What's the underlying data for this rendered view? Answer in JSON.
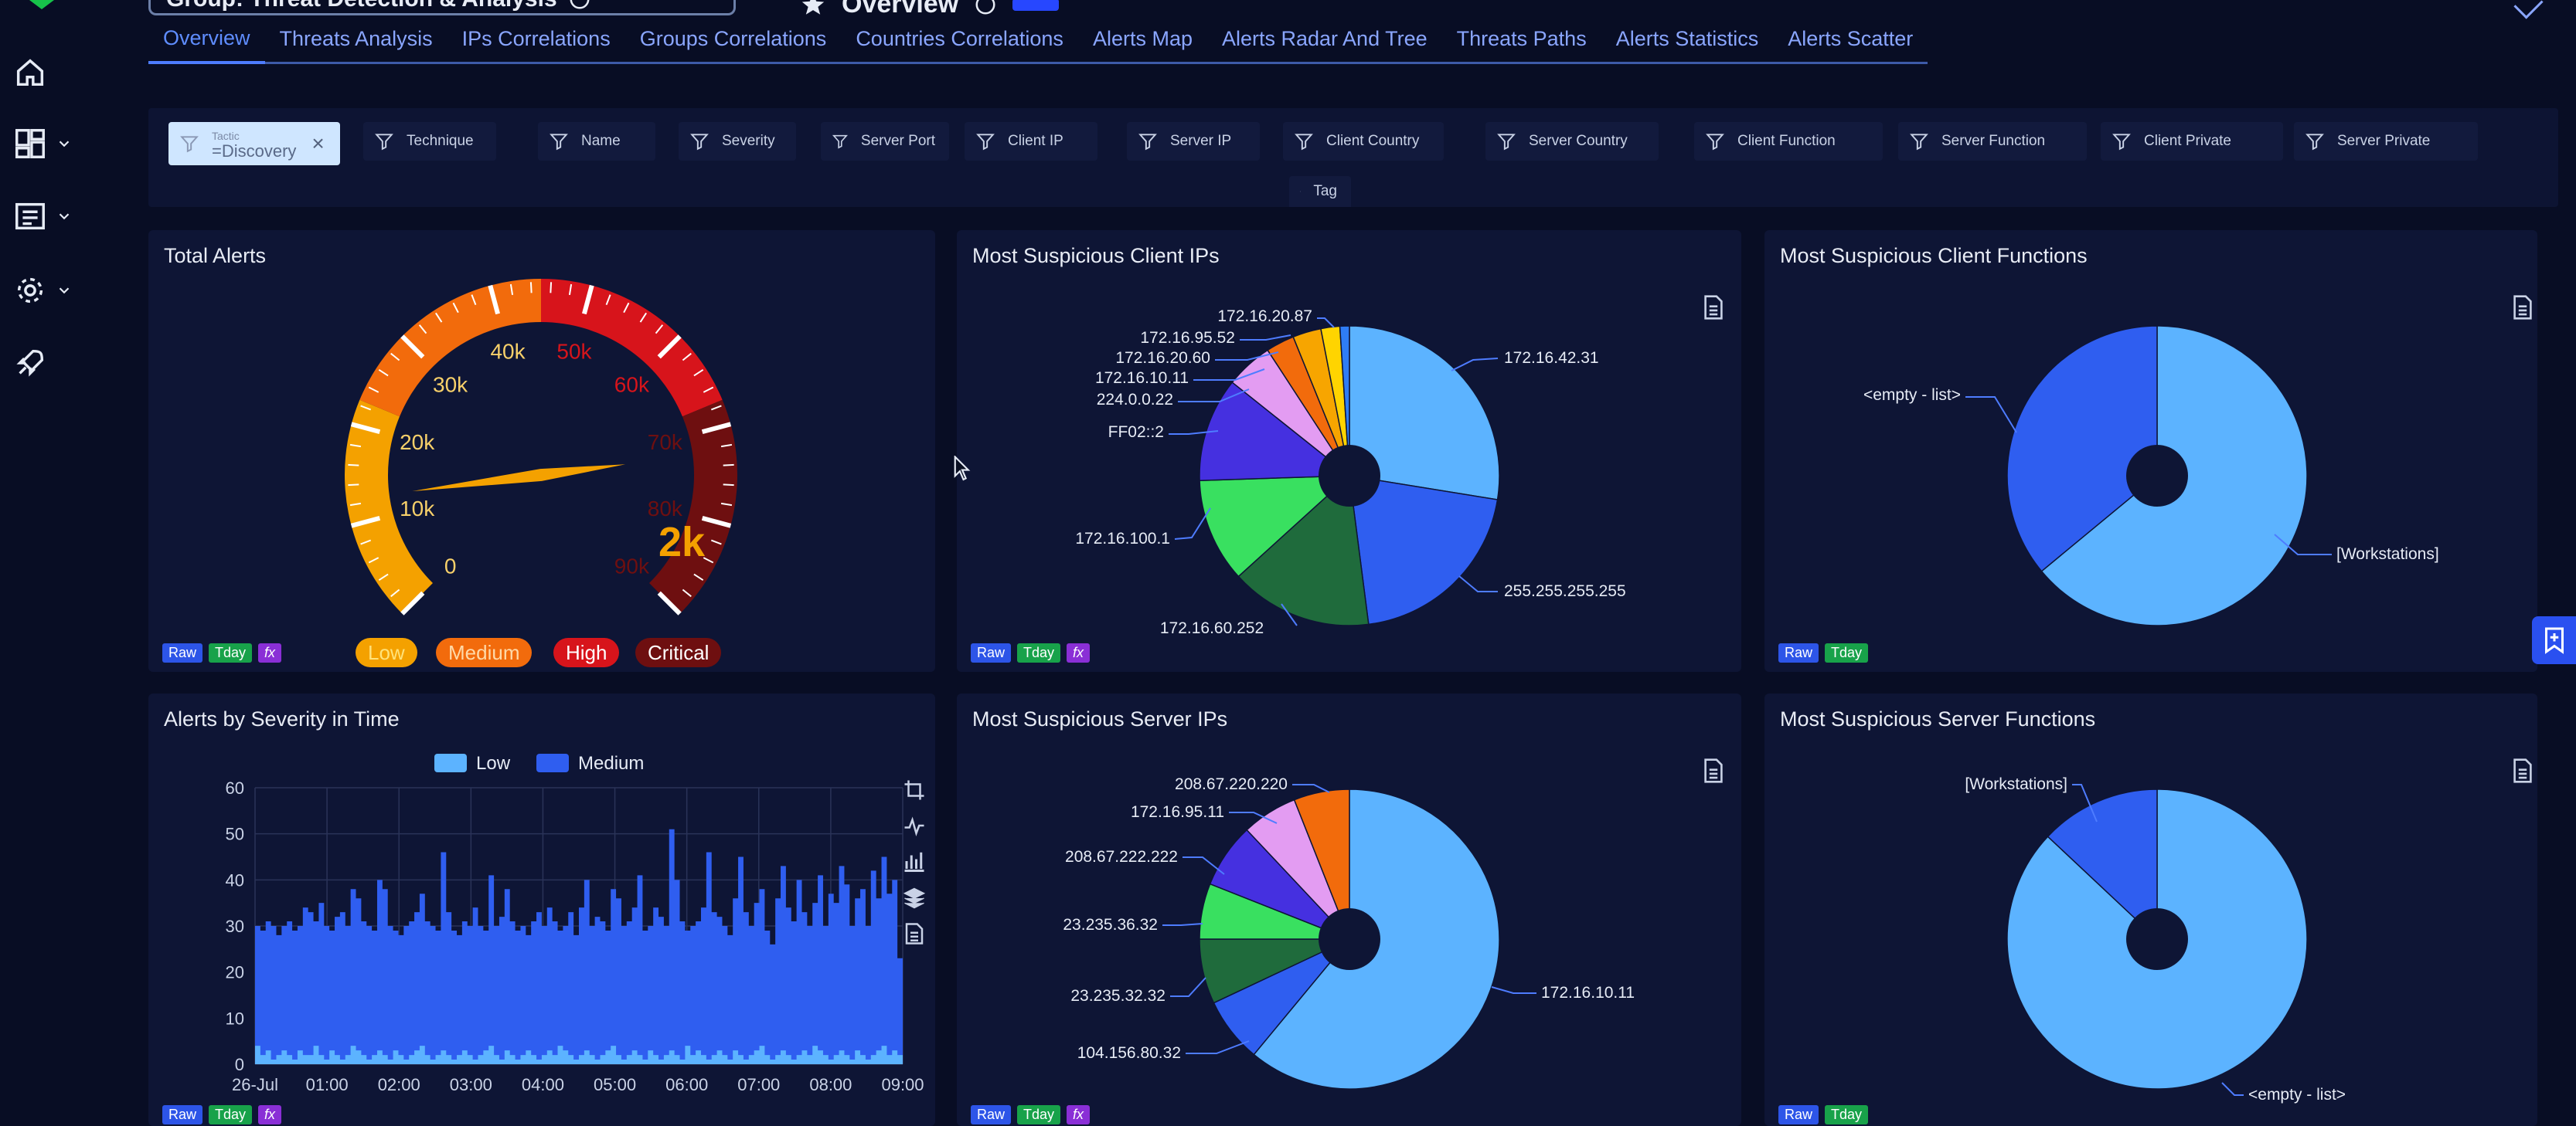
{
  "header": {
    "group_title": "Group: Threat Detection & Analysis",
    "dashboard_title": "Overview"
  },
  "tabs": [
    {
      "label": "Overview",
      "active": true
    },
    {
      "label": "Threats Analysis"
    },
    {
      "label": "IPs Correlations"
    },
    {
      "label": "Groups Correlations"
    },
    {
      "label": "Countries Correlations"
    },
    {
      "label": "Alerts Map"
    },
    {
      "label": "Alerts Radar And Tree"
    },
    {
      "label": "Threats Paths"
    },
    {
      "label": "Alerts Statistics"
    },
    {
      "label": "Alerts Scatter"
    }
  ],
  "filters": {
    "active": {
      "key": "Tactic",
      "value": "=Discovery"
    },
    "chips": [
      "Technique",
      "Name",
      "Severity",
      "Server Port",
      "Client IP",
      "Server IP",
      "Client Country",
      "Server Country",
      "Client Function",
      "Server Function",
      "Client Private",
      "Server Private",
      "Tag"
    ]
  },
  "sidebar": {
    "icons": [
      "home-icon",
      "dashboard-icon",
      "list-icon",
      "gear-icon",
      "rocket-icon"
    ]
  },
  "tags": {
    "raw": "Raw",
    "tday": "Tday",
    "fx": "fx"
  },
  "panels": {
    "total_alerts": {
      "title": "Total Alerts",
      "value_label": "2k",
      "value": 2000,
      "max": 90000,
      "ticks": [
        "0",
        "10k",
        "20k",
        "30k",
        "40k",
        "50k",
        "60k",
        "70k",
        "80k",
        "90k"
      ],
      "legend": [
        {
          "label": "Low",
          "color": "#f4a100"
        },
        {
          "label": "Medium",
          "color": "#f26b0c"
        },
        {
          "label": "High",
          "color": "#d7141b"
        },
        {
          "label": "Critical",
          "color": "#6e0f10"
        }
      ]
    },
    "client_ips": {
      "title": "Most Suspicious Client IPs",
      "chart_data": {
        "type": "pie",
        "labels": [
          "172.16.42.31",
          "255.255.255.255",
          "172.16.60.252",
          "172.16.100.1",
          "FF02::2",
          "224.0.0.22",
          "172.16.10.11",
          "172.16.20.60",
          "172.16.95.52",
          "172.16.20.87"
        ],
        "values": [
          27,
          20,
          15,
          11,
          11,
          5,
          3,
          3,
          2,
          1
        ],
        "colors": [
          "#5cb3ff",
          "#2f5ef0",
          "#1f6b3c",
          "#39e060",
          "#4530e0",
          "#e39cf2",
          "#f26b0c",
          "#f7a500",
          "#ffd400",
          "#2f7df5"
        ]
      }
    },
    "client_functions": {
      "title": "Most Suspicious Client Functions",
      "chart_data": {
        "type": "pie",
        "labels": [
          "[Workstations]",
          "<empty - list>"
        ],
        "values": [
          64,
          36
        ],
        "colors": [
          "#5cb3ff",
          "#2f5ef0"
        ]
      }
    },
    "severity_time": {
      "title": "Alerts by Severity in Time",
      "chart_data": {
        "type": "area",
        "series": [
          {
            "name": "Low",
            "color": "#5cb3ff"
          },
          {
            "name": "Medium",
            "color": "#2f5ef0"
          }
        ],
        "x_ticks": [
          "26-Jul",
          "01:00",
          "02:00",
          "03:00",
          "04:00",
          "05:00",
          "06:00",
          "07:00",
          "08:00",
          "09:00"
        ],
        "y_ticks": [
          "0",
          "10",
          "20",
          "30",
          "40",
          "50",
          "60"
        ],
        "ylim": [
          0,
          60
        ],
        "medium_values": [
          30,
          29,
          31,
          30,
          28,
          30,
          31,
          29,
          30,
          34,
          33,
          31,
          35,
          30,
          29,
          32,
          33,
          30,
          38,
          36,
          31,
          30,
          29,
          40,
          38,
          30,
          29,
          28,
          30,
          31,
          33,
          37,
          31,
          30,
          29,
          46,
          33,
          29,
          28,
          31,
          30,
          34,
          30,
          29,
          41,
          30,
          32,
          38,
          31,
          29,
          30,
          28,
          31,
          33,
          30,
          34,
          31,
          29,
          30,
          33,
          28,
          34,
          40,
          30,
          32,
          31,
          29,
          38,
          36,
          30,
          31,
          34,
          41,
          29,
          30,
          34,
          32,
          30,
          51,
          40,
          31,
          29,
          30,
          31,
          34,
          46,
          33,
          32,
          30,
          28,
          36,
          45,
          33,
          30,
          35,
          38,
          29,
          26,
          36,
          43,
          34,
          31,
          40,
          33,
          30,
          35,
          41,
          30,
          37,
          35,
          43,
          39,
          30,
          36,
          38,
          30,
          42,
          36,
          45,
          37,
          40,
          23
        ],
        "low_values": [
          4,
          2,
          3,
          1,
          2,
          3,
          2,
          1,
          3,
          2,
          2,
          4,
          2,
          1,
          3,
          2,
          1,
          2,
          4,
          3,
          2,
          1,
          2,
          3,
          2,
          1,
          3,
          2,
          1,
          2,
          3,
          4,
          2,
          1,
          2,
          3,
          2,
          1,
          2,
          3,
          2,
          1,
          2,
          3,
          4,
          2,
          1,
          3,
          2,
          1,
          2,
          3,
          2,
          1,
          2,
          3,
          2,
          4,
          3,
          2,
          1,
          2,
          3,
          2,
          1,
          2,
          3,
          4,
          2,
          1,
          2,
          3,
          2,
          1,
          3,
          2,
          1,
          2,
          3,
          2,
          1,
          4,
          2,
          3,
          2,
          1,
          2,
          3,
          2,
          1,
          3,
          2,
          1,
          2,
          3,
          4,
          2,
          1,
          2,
          3,
          2,
          1,
          2,
          3,
          2,
          4,
          3,
          2,
          1,
          2,
          3,
          2,
          1,
          3,
          2,
          1,
          2,
          3,
          4,
          2,
          3,
          2
        ]
      }
    },
    "server_ips": {
      "title": "Most Suspicious Server IPs",
      "chart_data": {
        "type": "pie",
        "labels": [
          "172.16.10.11",
          "104.156.80.32",
          "23.235.32.32",
          "23.235.36.32",
          "208.67.222.222",
          "172.16.95.11",
          "208.67.220.220"
        ],
        "values": [
          61,
          7,
          7,
          6,
          7,
          6,
          6
        ],
        "colors": [
          "#5cb3ff",
          "#2f5ef0",
          "#1f6b3c",
          "#39e060",
          "#4530e0",
          "#e39cf2",
          "#f26b0c"
        ]
      }
    },
    "server_functions": {
      "title": "Most Suspicious Server Functions",
      "chart_data": {
        "type": "pie",
        "labels": [
          "<empty - list>",
          "[Workstations]"
        ],
        "values": [
          87,
          13
        ],
        "colors": [
          "#5cb3ff",
          "#2f5ef0"
        ]
      }
    }
  }
}
